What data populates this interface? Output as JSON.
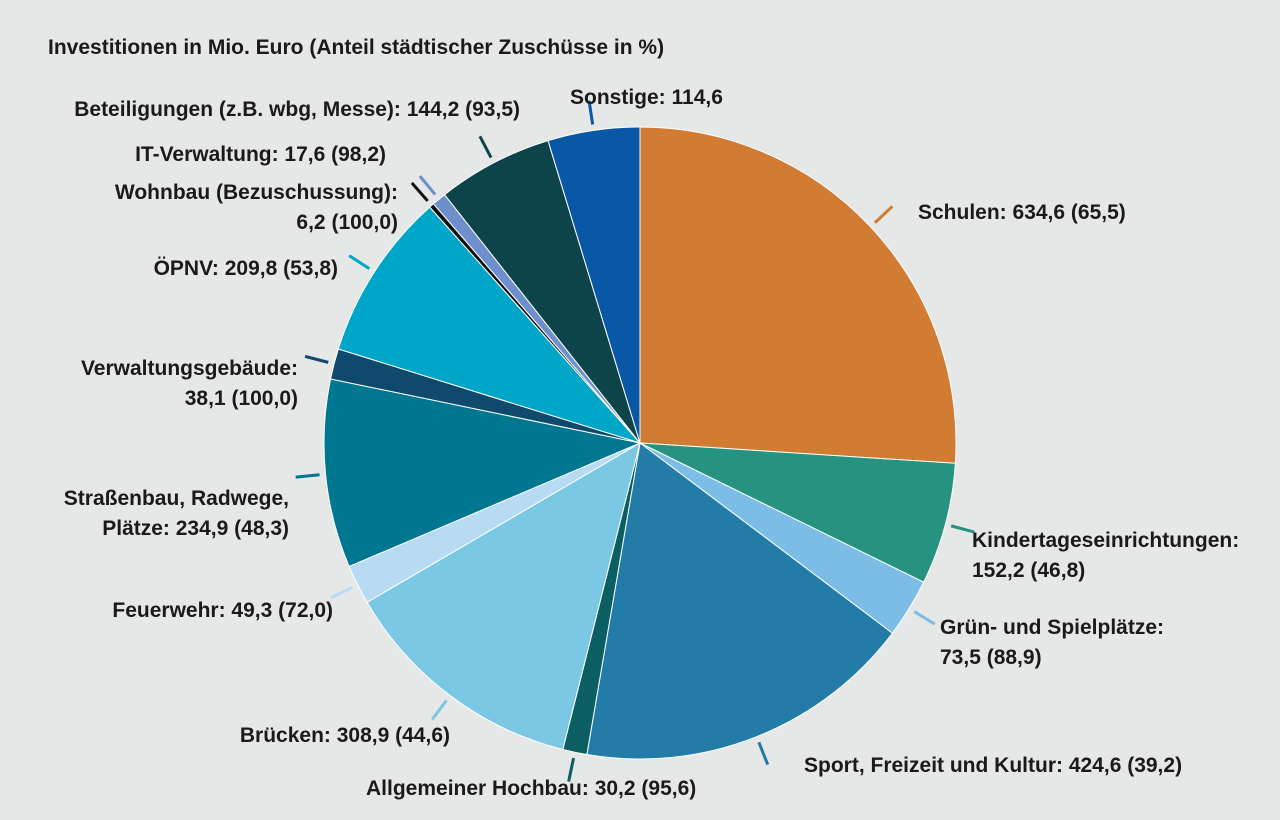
{
  "chart_data": {
    "type": "pie",
    "title": "Investitionen in Mio. Euro (Anteil städtischer Zuschüsse in %)",
    "start_angle_deg": 0,
    "direction": "clockwise",
    "slices": [
      {
        "name": "Schulen",
        "value": 634.6,
        "share": "65,5",
        "lines": [
          "Schulen: 634,6 (65,5)"
        ],
        "color": "#d17c32"
      },
      {
        "name": "Kindertageseinrichtungen",
        "value": 152.2,
        "share": "46,8",
        "lines": [
          "Kindertageseinrichtungen:",
          "152,2 (46,8)"
        ],
        "color": "#25937f"
      },
      {
        "name": "Grün- und Spielplätze",
        "value": 73.5,
        "share": "88,9",
        "lines": [
          "Grün- und Spielplätze:",
          "73,5 (88,9)"
        ],
        "color": "#7cbde6"
      },
      {
        "name": "Sport, Freizeit und Kultur",
        "value": 424.6,
        "share": "39,2",
        "lines": [
          "Sport, Freizeit und Kultur: 424,6 (39,2)"
        ],
        "color": "#237ca8"
      },
      {
        "name": "Allgemeiner Hochbau",
        "value": 30.2,
        "share": "95,6",
        "lines": [
          "Allgemeiner Hochbau: 30,2 (95,6)"
        ],
        "color": "#0b5e61"
      },
      {
        "name": "Brücken",
        "value": 308.9,
        "share": "44,6",
        "lines": [
          "Brücken: 308,9 (44,6)"
        ],
        "color": "#7ac8e4"
      },
      {
        "name": "Feuerwehr",
        "value": 49.3,
        "share": "72,0",
        "lines": [
          "Feuerwehr: 49,3 (72,0)"
        ],
        "color": "#b6dbf2"
      },
      {
        "name": "Straßenbau, Radwege, Plätze",
        "value": 234.9,
        "share": "48,3",
        "lines": [
          "Straßenbau, Radwege,",
          "Plätze: 234,9 (48,3)"
        ],
        "color": "#007791"
      },
      {
        "name": "Verwaltungsgebäude",
        "value": 38.1,
        "share": "100,0",
        "lines": [
          "Verwaltungsgebäude:",
          "38,1 (100,0)"
        ],
        "color": "#0f4a6e"
      },
      {
        "name": "ÖPNV",
        "value": 209.8,
        "share": "53,8",
        "lines": [
          "ÖPNV: 209,8 (53,8)"
        ],
        "color": "#00a6c8"
      },
      {
        "name": "Wohnbau (Bezuschussung)",
        "value": 6.2,
        "share": "100,0",
        "lines": [
          "Wohnbau (Bezuschussung):",
          "6,2 (100,0)"
        ],
        "color": "#111111"
      },
      {
        "name": "IT-Verwaltung",
        "value": 17.6,
        "share": "98,2",
        "lines": [
          "IT-Verwaltung: 17,6 (98,2)"
        ],
        "color": "#6d8fcb"
      },
      {
        "name": "Beteiligungen (z.B. wbg, Messe)",
        "value": 144.2,
        "share": "93,5",
        "lines": [
          "Beteiligungen (z.B. wbg, Messe): 144,2 (93,5)"
        ],
        "color": "#0d4449"
      },
      {
        "name": "Sonstige",
        "value": 114.6,
        "share": null,
        "lines": [
          "Sonstige: 114,6"
        ],
        "color": "#0858a6"
      }
    ]
  }
}
